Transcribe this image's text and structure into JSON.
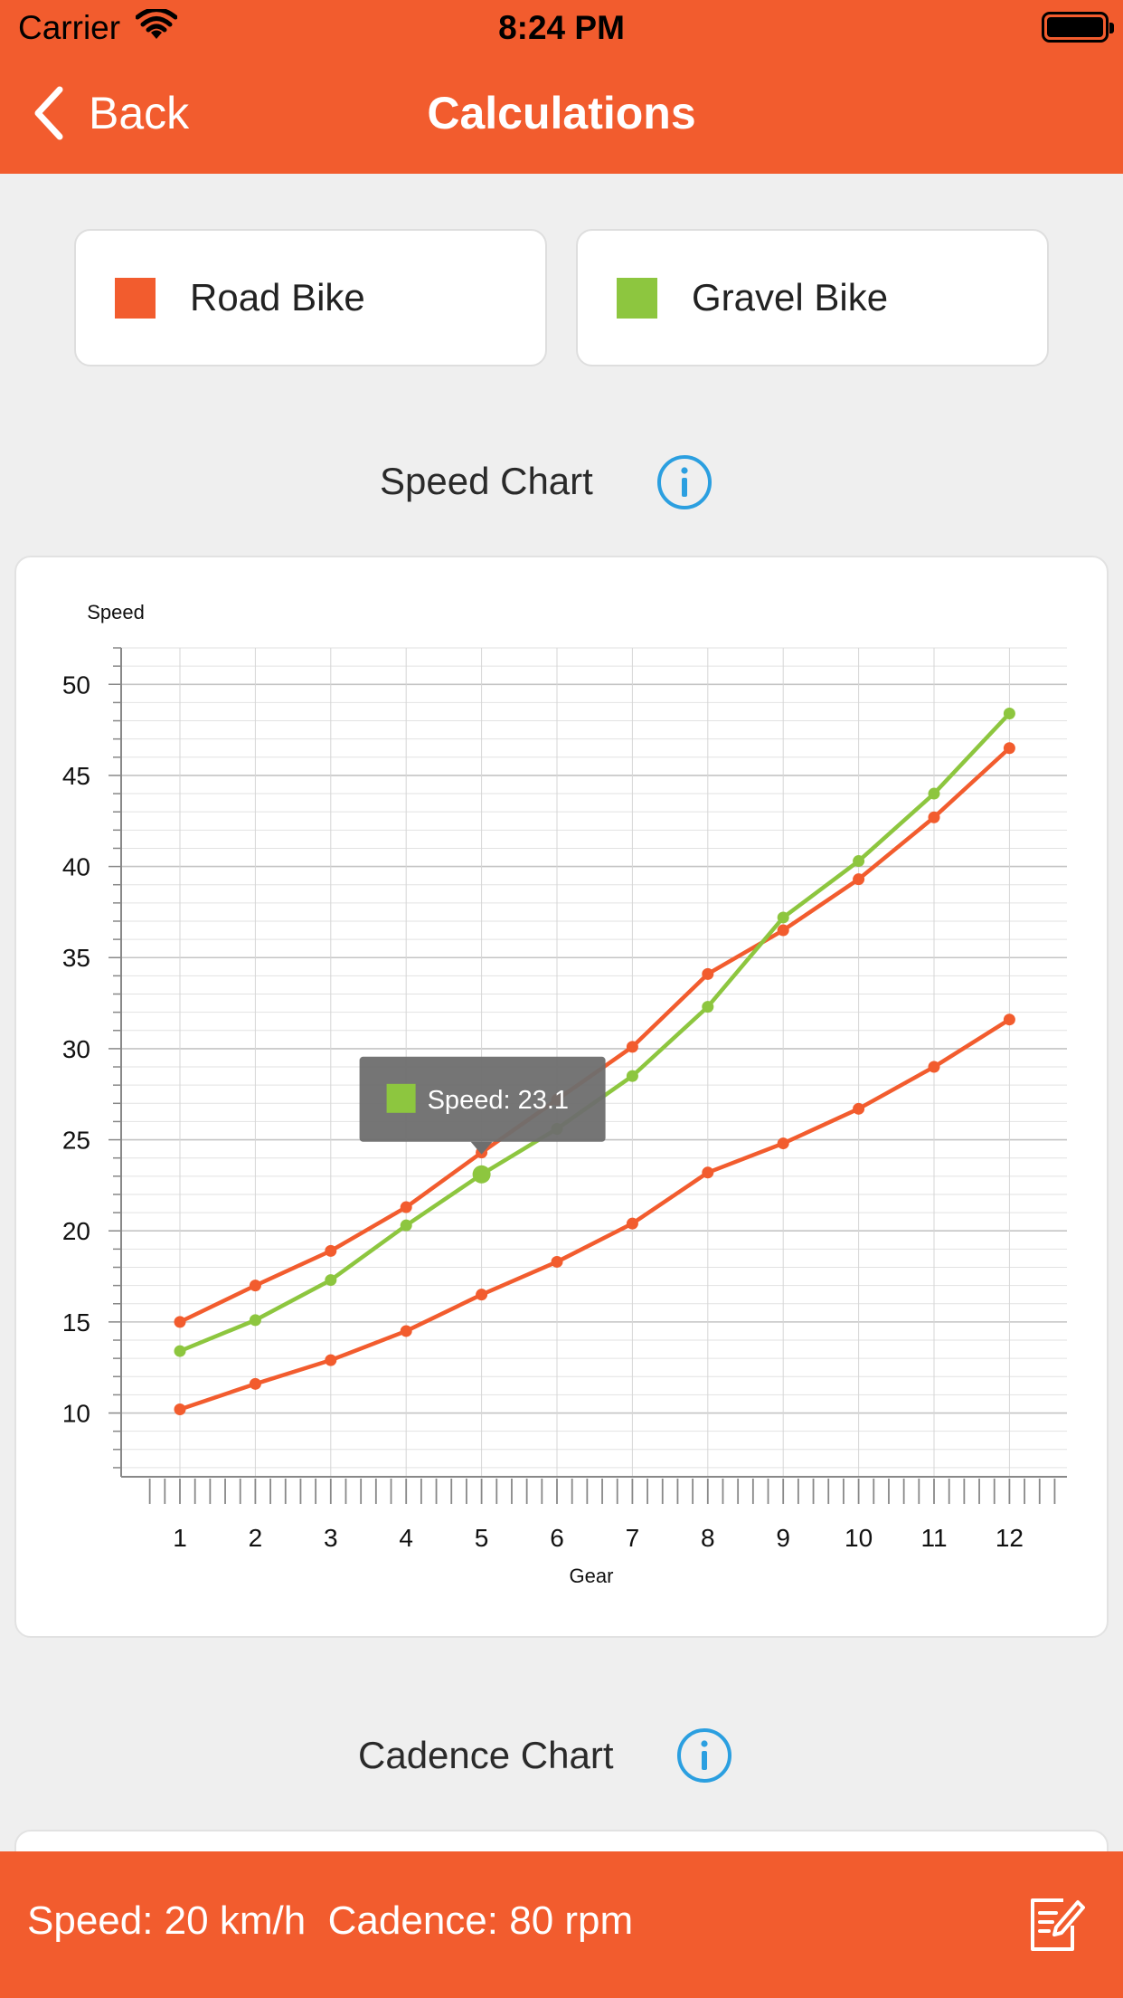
{
  "status_bar": {
    "carrier": "Carrier",
    "time": "8:24 PM"
  },
  "nav": {
    "back_label": "Back",
    "title": "Calculations"
  },
  "legend": [
    {
      "label": "Road Bike",
      "color": "#f25c2e"
    },
    {
      "label": "Gravel Bike",
      "color": "#8dc63f"
    }
  ],
  "speed_section": {
    "title": "Speed Chart"
  },
  "cadence_section": {
    "title": "Cadence Chart"
  },
  "tooltip": {
    "text": "Speed: 23.1",
    "color": "#8dc63f"
  },
  "chart_data": {
    "type": "line",
    "ylabel": "Speed",
    "xlabel": "Gear",
    "x": [
      1,
      2,
      3,
      4,
      5,
      6,
      7,
      8,
      9,
      10,
      11,
      12
    ],
    "yticks": [
      10,
      15,
      20,
      25,
      30,
      35,
      40,
      45,
      50
    ],
    "ylim": [
      6.5,
      52
    ],
    "grid": true,
    "series": [
      {
        "color": "#f25c2e",
        "values": [
          15.0,
          17.0,
          18.9,
          21.3,
          24.3,
          27.2,
          30.1,
          34.1,
          36.5,
          39.3,
          42.7,
          46.5
        ]
      },
      {
        "color": "#8dc63f",
        "values": [
          13.4,
          15.1,
          17.3,
          20.3,
          23.1,
          25.6,
          28.5,
          32.3,
          37.2,
          40.3,
          44.0,
          48.4
        ]
      },
      {
        "color": "#f25c2e",
        "values": [
          10.2,
          11.6,
          12.9,
          14.5,
          16.5,
          18.3,
          20.4,
          23.2,
          24.8,
          26.7,
          29.0,
          31.6
        ]
      }
    ],
    "highlight": {
      "series": 1,
      "index": 4
    }
  },
  "bottom_bar": {
    "readout": "Speed: 20 km/h  Cadence: 80 rpm"
  }
}
